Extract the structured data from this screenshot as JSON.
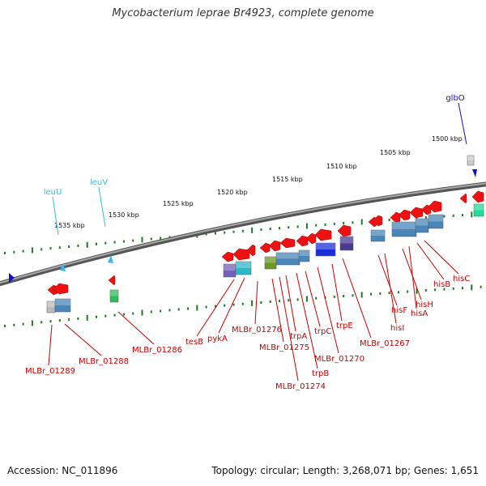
{
  "title": "Mycobacterium leprae Br4923, complete genome",
  "footer": {
    "accession": "Accession: NC_011896",
    "summary": "Topology: circular; Length: 3,268,071 bp; Genes: 1,651"
  },
  "colors": {
    "backbone": "#7a7a7a",
    "tick": "#1f7a1f",
    "gene_arrow": "#ee1111",
    "gene_label": "#cc0000",
    "rna_label": "#33bbee",
    "glbo_label": "#1111cc"
  },
  "axis_ticks": [
    {
      "label": "1500 kbp"
    },
    {
      "label": "1505 kbp"
    },
    {
      "label": "1510 kbp"
    },
    {
      "label": "1515 kbp"
    },
    {
      "label": "1520 kbp"
    },
    {
      "label": "1525 kbp"
    },
    {
      "label": "1530 kbp"
    },
    {
      "label": "1535 kbp"
    }
  ],
  "rna_labels": [
    "leuU",
    "leuV"
  ],
  "other_labels": [
    "glbO"
  ],
  "gene_labels": [
    "hisC",
    "hisB",
    "hisA",
    "hisH",
    "hisI",
    "hisF",
    "MLBr_01267",
    "trpE",
    "MLBr_01270",
    "trpC",
    "trpB",
    "trpA",
    "MLBr_01274",
    "MLBr_01275",
    "MLBr_01276",
    "pykA",
    "tesB",
    "MLBr_01286",
    "MLBr_01288",
    "MLBr_01289"
  ]
}
